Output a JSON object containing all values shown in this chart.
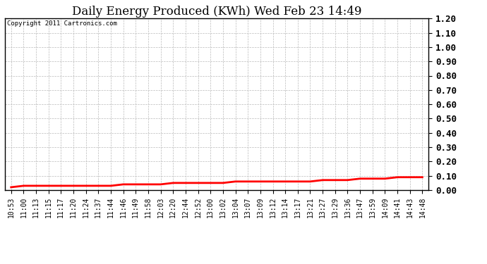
{
  "title": "Daily Energy Produced (KWh) Wed Feb 23 14:49",
  "copyright_text": "Copyright 2011 Cartronics.com",
  "x_labels": [
    "10:53",
    "11:00",
    "11:13",
    "11:15",
    "11:17",
    "11:20",
    "11:24",
    "11:37",
    "11:44",
    "11:46",
    "11:49",
    "11:58",
    "12:03",
    "12:20",
    "12:44",
    "12:52",
    "13:00",
    "13:02",
    "13:04",
    "13:07",
    "13:09",
    "13:12",
    "13:14",
    "13:17",
    "13:21",
    "13:27",
    "13:29",
    "13:36",
    "13:47",
    "13:59",
    "14:09",
    "14:41",
    "14:43",
    "14:48"
  ],
  "y_values": [
    0.02,
    0.03,
    0.03,
    0.03,
    0.03,
    0.03,
    0.03,
    0.03,
    0.03,
    0.04,
    0.04,
    0.04,
    0.04,
    0.05,
    0.05,
    0.05,
    0.05,
    0.05,
    0.06,
    0.06,
    0.06,
    0.06,
    0.06,
    0.06,
    0.06,
    0.07,
    0.07,
    0.07,
    0.08,
    0.08,
    0.08,
    0.09,
    0.09,
    0.09
  ],
  "line_color": "#ff0000",
  "line_width": 2.0,
  "background_color": "#ffffff",
  "plot_background": "#ffffff",
  "grid_color": "#bbbbbb",
  "grid_style": "--",
  "ylim": [
    0.0,
    1.2
  ],
  "yticks": [
    0.0,
    0.1,
    0.2,
    0.3,
    0.4,
    0.5,
    0.6,
    0.7,
    0.8,
    0.9,
    1.0,
    1.1,
    1.2
  ],
  "title_fontsize": 12,
  "copyright_fontsize": 6.5,
  "tick_fontsize": 7,
  "ytick_fontsize": 9
}
